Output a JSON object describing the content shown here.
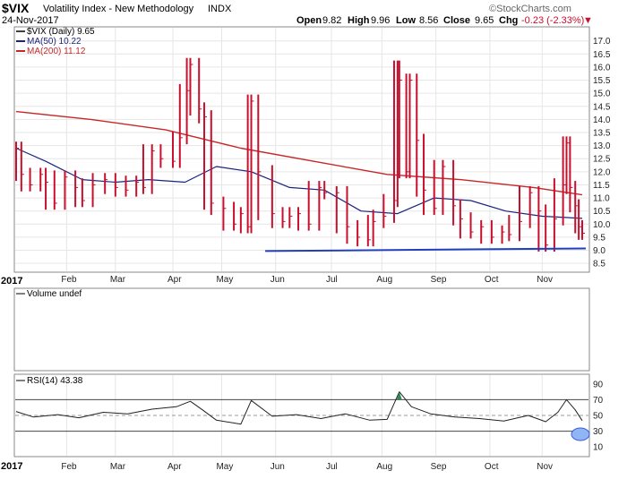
{
  "header": {
    "symbol": "$VIX",
    "name": "Volatility Index - New Methodology",
    "exchange": "INDX",
    "date": "24-Nov-2017",
    "open_label": "Open",
    "open": "9.82",
    "high_label": "High",
    "high": "9.96",
    "low_label": "Low",
    "low": "8.56",
    "close_label": "Close",
    "close": "9.65",
    "chg_label": "Chg",
    "chg": "-0.23 (-2.33%)",
    "chg_arrow": "▼",
    "watermark": "©StockCharts.com"
  },
  "legend": {
    "price": "$VIX (Daily) 9.65",
    "ma50": "MA(50) 10.22",
    "ma200": "MA(200) 11.12"
  },
  "volume_panel": {
    "label": "Volume undef"
  },
  "rsi_panel": {
    "label": "RSI(14) 43.38"
  },
  "colors": {
    "price": "#c8102e",
    "ma50": "#1a237e",
    "ma200": "#c62828",
    "rsi": "#222222",
    "support": "#1f3fbf",
    "highlight": "#8fb5f5",
    "grid": "#e6e6e6"
  },
  "chart_data": [
    {
      "type": "line",
      "title": "$VIX Volatility Index - New Methodology INDX",
      "y_axis_side": "right",
      "yticks": [
        "8.5",
        "9.0",
        "9.5",
        "10.0",
        "10.5",
        "11.0",
        "11.5",
        "12.0",
        "12.5",
        "13.0",
        "13.5",
        "14.0",
        "14.5",
        "15.0",
        "15.5",
        "16.0",
        "16.5",
        "17.0"
      ],
      "ylim": [
        8.3,
        17.4
      ],
      "x_axis": {
        "year_label": "2017",
        "months": [
          "Feb",
          "Mar",
          "Apr",
          "May",
          "Jun",
          "Jul",
          "Aug",
          "Sep",
          "Oct",
          "Nov"
        ],
        "range": [
          "2017-01-03",
          "2017-11-24"
        ]
      },
      "series": [
        {
          "name": "$VIX (Daily)",
          "style": "hlc-bars",
          "x": [
            "2017-01-03",
            "2017-01-06",
            "2017-01-11",
            "2017-01-17",
            "2017-01-20",
            "2017-01-25",
            "2017-01-31",
            "2017-02-06",
            "2017-02-10",
            "2017-02-16",
            "2017-02-23",
            "2017-03-01",
            "2017-03-07",
            "2017-03-13",
            "2017-03-17",
            "2017-03-22",
            "2017-03-27",
            "2017-04-03",
            "2017-04-07",
            "2017-04-11",
            "2017-04-13",
            "2017-04-18",
            "2017-04-21",
            "2017-04-25",
            "2017-05-02",
            "2017-05-08",
            "2017-05-12",
            "2017-05-16",
            "2017-05-18",
            "2017-05-22",
            "2017-05-30",
            "2017-06-05",
            "2017-06-09",
            "2017-06-14",
            "2017-06-20",
            "2017-06-26",
            "2017-06-29",
            "2017-07-06",
            "2017-07-12",
            "2017-07-18",
            "2017-07-24",
            "2017-07-27",
            "2017-08-02",
            "2017-08-08",
            "2017-08-10",
            "2017-08-11",
            "2017-08-15",
            "2017-08-17",
            "2017-08-21",
            "2017-08-25",
            "2017-08-31",
            "2017-09-05",
            "2017-09-11",
            "2017-09-15",
            "2017-09-21",
            "2017-09-27",
            "2017-10-03",
            "2017-10-09",
            "2017-10-13",
            "2017-10-19",
            "2017-10-25",
            "2017-10-30",
            "2017-11-03",
            "2017-11-08",
            "2017-11-13",
            "2017-11-15",
            "2017-11-17",
            "2017-11-20",
            "2017-11-22",
            "2017-11-24"
          ],
          "values": [
            12.9,
            11.9,
            11.5,
            11.9,
            11.6,
            10.8,
            11.8,
            11.4,
            10.9,
            11.5,
            11.7,
            11.4,
            11.3,
            11.6,
            11.4,
            12.8,
            12.5,
            12.4,
            13.3,
            15.1,
            16.1,
            14.4,
            14.1,
            10.8,
            10.6,
            10.0,
            10.4,
            9.9,
            14.7,
            12.0,
            10.4,
            10.1,
            10.3,
            10.4,
            10.0,
            11.4,
            11.2,
            11.2,
            9.9,
            9.5,
            9.4,
            10.1,
            10.3,
            10.9,
            16.0,
            15.5,
            12.0,
            15.5,
            13.2,
            11.3,
            10.6,
            12.2,
            10.7,
            10.2,
            9.7,
            9.9,
            9.5,
            9.7,
            9.6,
            10.1,
            11.2,
            10.5,
            9.2,
            10.2,
            11.5,
            13.1,
            11.4,
            10.7,
            9.9,
            9.65
          ]
        },
        {
          "name": "MA(50)",
          "x": [
            "2017-01-03",
            "2017-01-20",
            "2017-02-10",
            "2017-03-01",
            "2017-03-20",
            "2017-04-10",
            "2017-04-28",
            "2017-05-18",
            "2017-06-09",
            "2017-06-29",
            "2017-07-20",
            "2017-08-10",
            "2017-08-31",
            "2017-09-21",
            "2017-10-11",
            "2017-11-01",
            "2017-11-24"
          ],
          "values": [
            12.9,
            12.4,
            11.7,
            11.6,
            11.7,
            11.6,
            12.2,
            12.0,
            11.4,
            11.3,
            10.5,
            10.4,
            11.0,
            10.9,
            10.5,
            10.3,
            10.22
          ]
        },
        {
          "name": "MA(200)",
          "x": [
            "2017-01-03",
            "2017-02-15",
            "2017-03-30",
            "2017-05-12",
            "2017-06-23",
            "2017-08-04",
            "2017-09-15",
            "2017-10-27",
            "2017-11-24"
          ],
          "values": [
            14.3,
            14.0,
            13.6,
            12.9,
            12.4,
            11.9,
            11.7,
            11.4,
            11.12
          ]
        }
      ],
      "annotations": [
        {
          "kind": "support-line",
          "from": "2017-05-26",
          "to": "2017-11-24",
          "y_start": 8.97,
          "y_end": 9.07
        }
      ]
    },
    {
      "type": "line",
      "title": "RSI(14) 43.38",
      "yticks": [
        "10",
        "30",
        "50",
        "70",
        "90"
      ],
      "ylim": [
        0,
        100
      ],
      "reference_lines": [
        30,
        50,
        70
      ],
      "x_axis": {
        "year_label": "2017",
        "months": [
          "Feb",
          "Mar",
          "Apr",
          "May",
          "Jun",
          "Jul",
          "Aug",
          "Sep",
          "Oct",
          "Nov"
        ],
        "range": [
          "2017-01-03",
          "2017-11-24"
        ]
      },
      "series": [
        {
          "name": "RSI(14)",
          "x": [
            "2017-01-03",
            "2017-01-13",
            "2017-01-27",
            "2017-02-08",
            "2017-02-22",
            "2017-03-08",
            "2017-03-22",
            "2017-04-05",
            "2017-04-13",
            "2017-04-20",
            "2017-04-28",
            "2017-05-12",
            "2017-05-18",
            "2017-05-30",
            "2017-06-13",
            "2017-06-27",
            "2017-07-11",
            "2017-07-25",
            "2017-08-04",
            "2017-08-11",
            "2017-08-18",
            "2017-08-29",
            "2017-09-12",
            "2017-09-26",
            "2017-10-10",
            "2017-10-24",
            "2017-11-03",
            "2017-11-10",
            "2017-11-15",
            "2017-11-20",
            "2017-11-24"
          ],
          "values": [
            55,
            48,
            51,
            47,
            54,
            52,
            58,
            61,
            68,
            57,
            44,
            39,
            69,
            49,
            51,
            46,
            52,
            44,
            45,
            80,
            61,
            52,
            48,
            46,
            43,
            50,
            42,
            54,
            70,
            57,
            43.38
          ]
        }
      ]
    }
  ]
}
